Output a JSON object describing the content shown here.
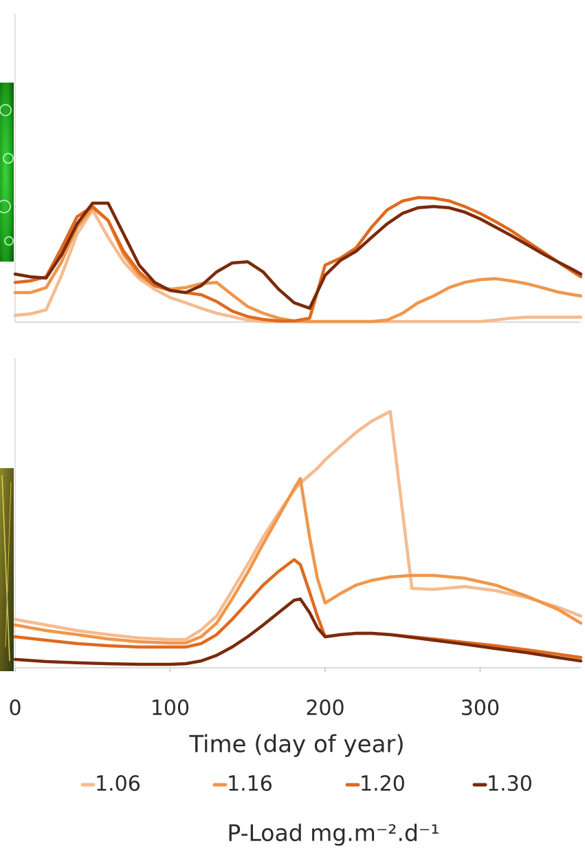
{
  "chart_data": [
    {
      "type": "line",
      "x": [
        0,
        10,
        20,
        30,
        40,
        50,
        60,
        70,
        80,
        90,
        100,
        110,
        120,
        130,
        140,
        150,
        160,
        170,
        180,
        190,
        200,
        210,
        220,
        230,
        240,
        250,
        260,
        270,
        280,
        290,
        300,
        310,
        320,
        330,
        340,
        350,
        360,
        365
      ],
      "xlim": [
        0,
        365
      ],
      "ylim": [
        0,
        100
      ],
      "series": [
        {
          "color": "#f5bb8f",
          "values": [
            2.2,
            2.7,
            4,
            15.2,
            28.6,
            36.4,
            27.5,
            19.6,
            14.1,
            10.7,
            8,
            6.3,
            4.5,
            2.9,
            1.8,
            0.7,
            0.2,
            0.2,
            0.2,
            0.2,
            0.2,
            0.2,
            0.2,
            0.2,
            0.2,
            0.2,
            0.2,
            0.2,
            0.2,
            0.2,
            0.2,
            0.7,
            1.3,
            1.6,
            1.6,
            1.6,
            1.6,
            1.6
          ]
        },
        {
          "color": "#f0964a",
          "values": [
            9.6,
            9.6,
            11.2,
            19.6,
            30.8,
            37.1,
            33,
            21.9,
            15.2,
            11.8,
            10.7,
            11.2,
            12.5,
            12.9,
            8.9,
            5.1,
            2.9,
            1.3,
            0.4,
            0.2,
            0.2,
            0.2,
            0.2,
            0.2,
            0.7,
            2.9,
            6.3,
            8.5,
            11.2,
            12.9,
            13.8,
            14.1,
            13.4,
            12.5,
            11.2,
            9.8,
            8.9,
            8.5
          ]
        },
        {
          "color": "#df6a1f",
          "values": [
            12.9,
            13.4,
            14.7,
            24.1,
            34.2,
            37.5,
            33,
            23,
            16.3,
            11.8,
            10.3,
            9.6,
            8.9,
            6.7,
            3.6,
            1.8,
            0.9,
            0.4,
            0.4,
            1.3,
            18.5,
            20.8,
            24.1,
            30.8,
            36.4,
            39.3,
            40.4,
            40.2,
            39.3,
            37.5,
            35.3,
            32.6,
            29.7,
            26.3,
            23,
            19.6,
            16.3,
            14.7
          ]
        },
        {
          "color": "#7a2a0c",
          "values": [
            15.6,
            14.7,
            14.3,
            21.9,
            31.9,
            38.6,
            38.6,
            28.6,
            18.5,
            12.9,
            10.3,
            9.6,
            11.8,
            16.3,
            19.2,
            19.6,
            16.3,
            10.7,
            6.3,
            4.5,
            15.2,
            20.1,
            23,
            27.5,
            31.9,
            35.3,
            37.1,
            37.5,
            37.1,
            35.7,
            33.5,
            30.8,
            28.1,
            25.2,
            22.3,
            19.6,
            17,
            15.6
          ]
        }
      ]
    },
    {
      "type": "line",
      "x": [
        0,
        20,
        40,
        60,
        80,
        100,
        110,
        120,
        130,
        140,
        150,
        160,
        170,
        180,
        184,
        190,
        195,
        200,
        210,
        220,
        230,
        242,
        256,
        270,
        290,
        310,
        330,
        350,
        365
      ],
      "xlim": [
        0,
        365
      ],
      "ylim": [
        0,
        100
      ],
      "xticks": [
        0,
        100,
        200,
        300
      ],
      "xlabel": "Time (day of year)",
      "legend_title": "P-Load mg.m⁻².d⁻¹",
      "series": [
        {
          "name": "1.06",
          "color": "#f5bb8f",
          "values": [
            15.6,
            13.8,
            12,
            10.7,
            9.6,
            9.1,
            9.1,
            12.2,
            16.7,
            24.9,
            33.3,
            42.2,
            50,
            57.3,
            59.6,
            62.2,
            64.4,
            67.1,
            71.6,
            76,
            79.6,
            82.7,
            25.6,
            25.3,
            26.2,
            24.9,
            22.7,
            19.6,
            16.7
          ]
        },
        {
          "name": "1.16",
          "color": "#f0964a",
          "values": [
            13.8,
            12,
            10.7,
            9.3,
            8.4,
            8,
            8,
            10,
            14.4,
            22.2,
            30.7,
            40,
            48.9,
            57.8,
            61.1,
            42.2,
            28.9,
            20.9,
            24,
            26.7,
            28.2,
            29.3,
            29.8,
            29.8,
            28.9,
            26.7,
            23.1,
            18.9,
            14.4
          ]
        },
        {
          "name": "1.20",
          "color": "#df6a1f",
          "values": [
            10,
            8.9,
            7.8,
            7.1,
            6.7,
            6.7,
            6.7,
            7.8,
            10.7,
            15.6,
            21.1,
            26.7,
            31.1,
            34.9,
            33.3,
            24.4,
            16.7,
            10,
            10.7,
            11.1,
            11.1,
            10.7,
            10,
            9.3,
            8.2,
            7.1,
            5.8,
            4.4,
            3.3
          ]
        },
        {
          "name": "1.30",
          "color": "#7a2a0c",
          "values": [
            2.7,
            2,
            1.6,
            1.3,
            1.1,
            1.1,
            1.3,
            2.2,
            4,
            6.7,
            10,
            13.8,
            17.8,
            21.8,
            22.2,
            17.8,
            12.9,
            10,
            10.7,
            11.1,
            11.1,
            10.7,
            9.8,
            8.9,
            7.6,
            6.2,
            4.9,
            3.3,
            2.2
          ]
        }
      ]
    }
  ]
}
